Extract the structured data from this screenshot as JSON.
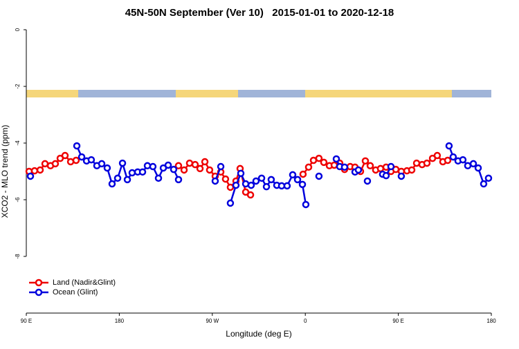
{
  "chart_data": {
    "type": "line",
    "title": "45N-50N September (Ver 10)   2015-01-01 to 2020-12-18",
    "xlabel": "Longitude (deg E)",
    "ylabel": "XCO2 - MLO trend (ppm)",
    "xlim": [
      90,
      540
    ],
    "xticks": [
      {
        "value": 90,
        "label": "90 E"
      },
      {
        "value": 180,
        "label": "180"
      },
      {
        "value": 270,
        "label": "90 W"
      },
      {
        "value": 360,
        "label": "0"
      },
      {
        "value": 450,
        "label": "90 E"
      },
      {
        "value": 540,
        "label": "180"
      }
    ],
    "ylim": [
      -10,
      0
    ],
    "yticks": [
      0,
      -2,
      -4,
      -6,
      -8
    ],
    "legend": "bottomleft",
    "series": [
      {
        "name": "Land (Nadir&Glint)",
        "color": "#ee0000",
        "x": [
          92.7,
          98,
          103.4,
          108.1,
          113.4,
          118.1,
          122.8,
          127.5,
          132.9,
          138.2,
          null,
          237.3,
          242.7,
          248,
          253.4,
          258.1,
          262.8,
          267.4,
          272.8,
          278.2,
          282.8,
          287.5,
          292.9,
          296.9,
          302.3,
          307,
          null,
          357.8,
          363.2,
          367.9,
          373.2,
          377.9,
          383.3,
          388,
          393.3,
          398,
          403.4,
          408.1,
          413.4,
          418.1,
          422.8,
          428.1,
          432.8,
          438.2,
          442.9,
          447.6,
          452.9,
          458.3,
          463,
          467.7,
          473,
          477.7,
          483.1,
          487.7,
          493.1,
          497.8
        ],
        "values": [
          -5.0,
          -4.98,
          -4.95,
          -4.73,
          -4.8,
          -4.73,
          -4.54,
          -4.44,
          -4.66,
          -4.61,
          null,
          -4.8,
          -4.95,
          -4.71,
          -4.76,
          -4.9,
          -4.66,
          -4.95,
          -5.17,
          -5.02,
          -5.27,
          -5.56,
          -5.34,
          -4.9,
          -5.73,
          -5.83,
          null,
          -5.1,
          -4.85,
          -4.61,
          -4.54,
          -4.68,
          -4.8,
          -4.78,
          -4.71,
          -4.93,
          -4.83,
          -4.85,
          -5.0,
          -4.63,
          -4.8,
          -4.95,
          -4.9,
          -4.85,
          -5.0,
          -4.93,
          -5.0,
          -4.98,
          -4.95,
          -4.71,
          -4.76,
          -4.71,
          -4.54,
          -4.44,
          -4.66,
          -4.61
        ]
      },
      {
        "name": "Ocean (Glint)",
        "color": "#0000dd",
        "x": [
          94,
          null,
          138.9,
          143.6,
          148.3,
          152.9,
          158.3,
          163,
          168.3,
          173,
          178.4,
          183.1,
          187.8,
          192.4,
          197.8,
          202.5,
          207.2,
          212.5,
          217.9,
          222.6,
          227.3,
          232.6,
          237.3,
          null,
          272.8,
          278.2,
          null,
          287.5,
          292.9,
          297.6,
          302.3,
          307.6,
          312.3,
          317.7,
          322.4,
          327,
          332.4,
          337.1,
          342.4,
          347.8,
          352.5,
          357.2,
          360.5,
          null,
          373.2,
          null,
          390,
          393.3,
          398,
          null,
          408.1,
          411.4,
          null,
          420.1,
          null,
          434.8,
          438.2,
          442.9,
          null,
          452.9,
          null,
          499.1,
          503.1,
          507.8,
          512.5,
          517.2,
          522.6,
          527.3,
          532.6,
          537.3
        ],
        "values": [
          -5.17,
          null,
          -4.1,
          -4.49,
          -4.63,
          -4.59,
          -4.8,
          -4.73,
          -4.88,
          -5.44,
          -5.24,
          -4.71,
          -5.29,
          -5.05,
          -5.02,
          -5.02,
          -4.8,
          -4.83,
          -5.24,
          -4.88,
          -4.78,
          -4.93,
          -5.29,
          null,
          -5.34,
          -4.83,
          null,
          -6.12,
          -5.49,
          -5.07,
          -5.44,
          -5.49,
          -5.34,
          -5.24,
          -5.54,
          -5.29,
          -5.49,
          -5.51,
          -5.51,
          -5.12,
          -5.29,
          -5.46,
          -6.17,
          null,
          -5.17,
          null,
          -4.56,
          -4.83,
          -4.85,
          null,
          -5.02,
          -4.95,
          null,
          -5.34,
          null,
          -5.1,
          -5.15,
          -4.83,
          null,
          -5.17,
          null,
          -4.1,
          -4.49,
          -4.63,
          -4.59,
          -4.8,
          -4.73,
          -4.88,
          -5.44,
          -5.24
        ]
      }
    ]
  }
}
